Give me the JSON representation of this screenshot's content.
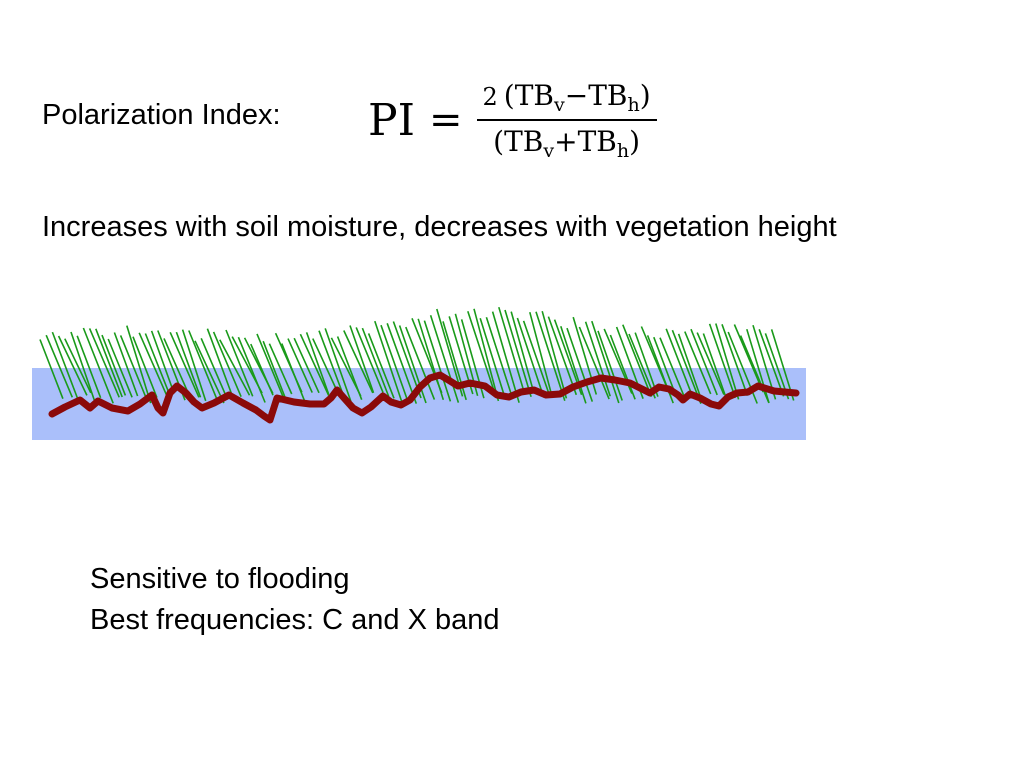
{
  "polarization_label": "Polarization Index:",
  "formula": {
    "lhs": "PI",
    "equals": "=",
    "coefficient": "2",
    "open_paren": "(",
    "close_paren": ")",
    "term_v": "TB",
    "sub_v": "v",
    "term_h": "TB",
    "sub_h": "h",
    "minus": "−",
    "plus": "+"
  },
  "statement": "Increases with soil moisture, decreases with vegetation height",
  "bullets": [
    "Sensitive to flooding",
    "Best frequencies: C and X band"
  ],
  "colors": {
    "water": "#aabffa",
    "vegetation": "#1a9a1a",
    "soil": "#8b0a0a",
    "text": "#000000",
    "background": "#ffffff"
  }
}
